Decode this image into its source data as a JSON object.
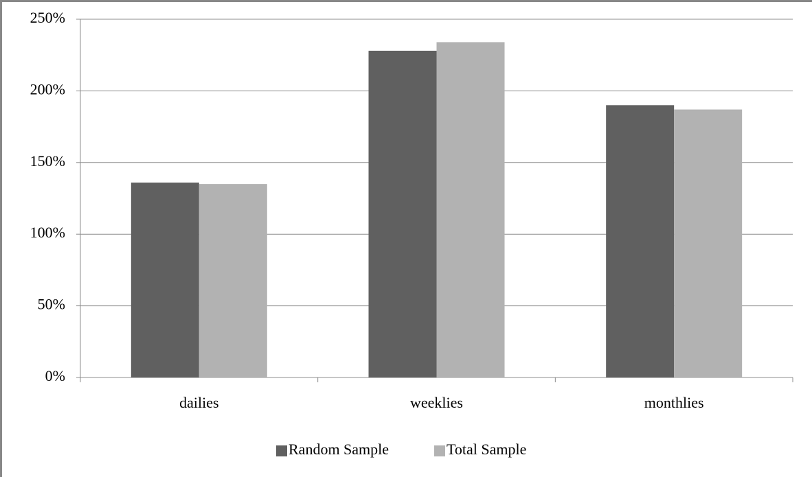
{
  "chart_data": {
    "type": "bar",
    "categories": [
      "dailies",
      "weeklies",
      "monthlies"
    ],
    "series": [
      {
        "name": "Random Sample",
        "color": "#606060",
        "values": [
          136,
          228,
          190
        ]
      },
      {
        "name": "Total Sample",
        "color": "#b2b2b2",
        "values": [
          135,
          234,
          187
        ]
      }
    ],
    "ylim": [
      0,
      250
    ],
    "yticks": [
      {
        "value": 0,
        "label": "0%"
      },
      {
        "value": 50,
        "label": "50%"
      },
      {
        "value": 100,
        "label": "100%"
      },
      {
        "value": 150,
        "label": "150%"
      },
      {
        "value": 200,
        "label": "200%"
      },
      {
        "value": 250,
        "label": "250%"
      }
    ],
    "grid": true,
    "legend": "bottom"
  }
}
